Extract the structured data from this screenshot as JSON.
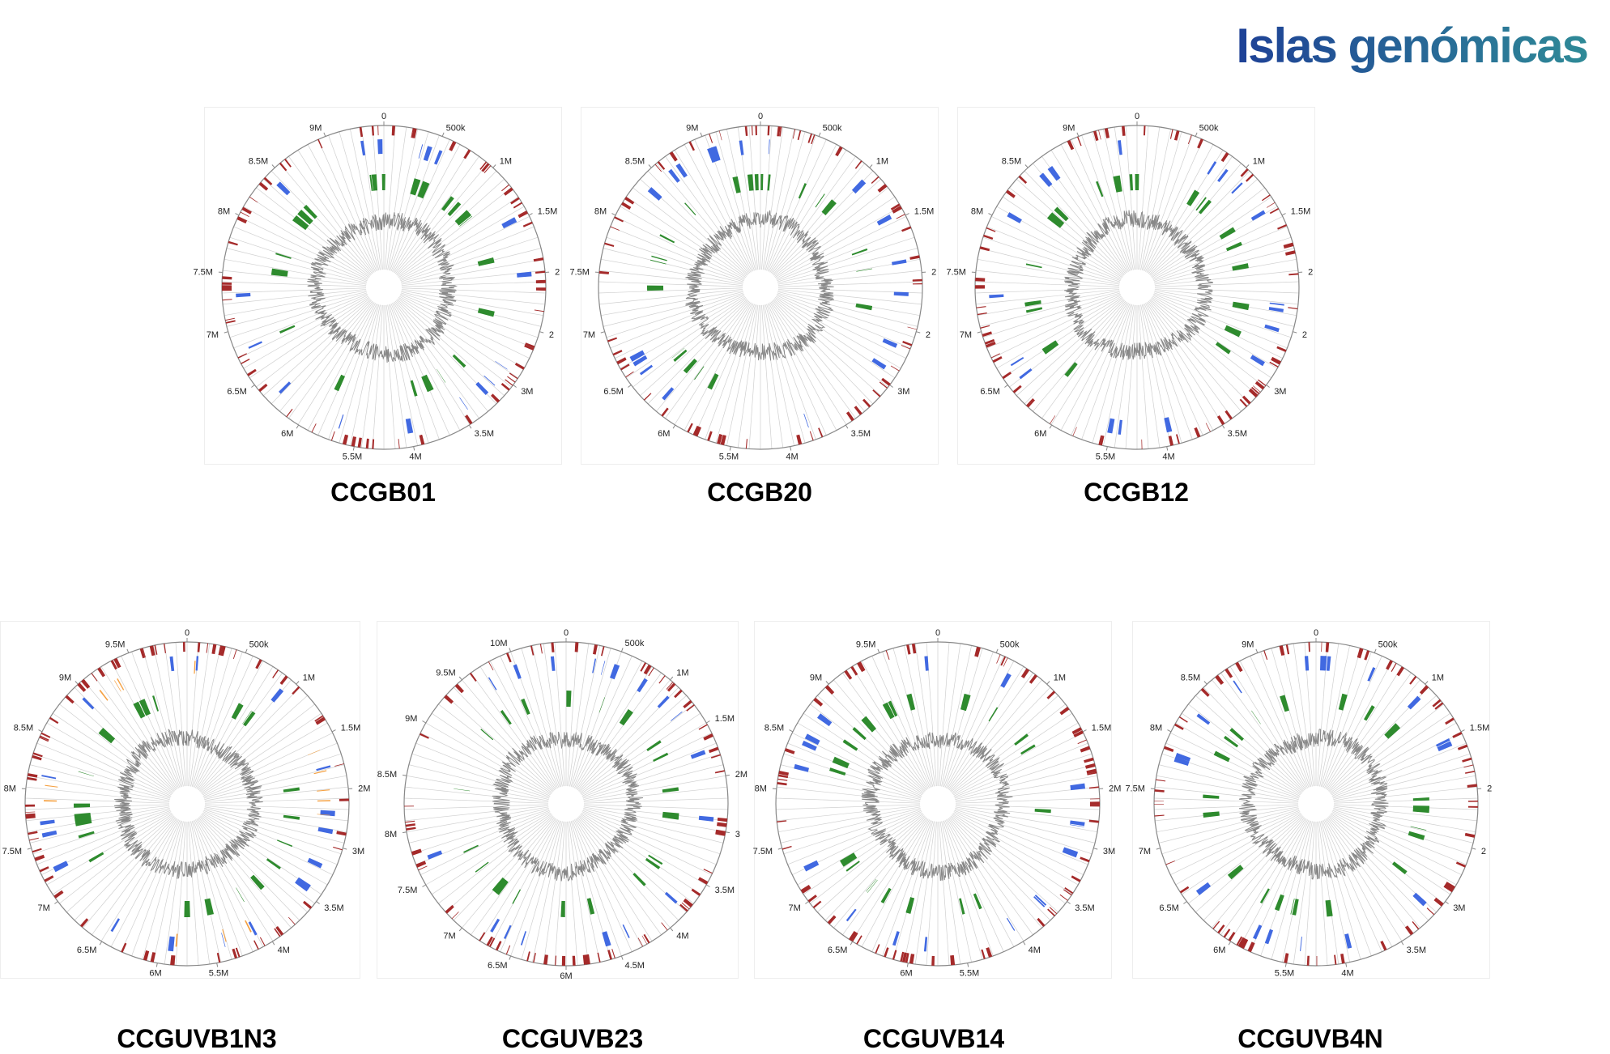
{
  "title": "Islas genómicas",
  "colors": {
    "title_gradient": [
      "#1d3c96",
      "#2f8a97"
    ],
    "outer_track": "#a52a2a",
    "second_track": "#4169e1",
    "third_track": "#2e8b2e",
    "fourth_track": "#f5a142",
    "gc_line": "#888888",
    "axis": "#888888"
  },
  "plots": [
    {
      "id": "CCGB01",
      "label": "CCGB01",
      "ticks": [
        "0",
        "500k",
        "1M",
        "1.5M",
        "2",
        "2",
        "3M",
        "3.5M",
        "4M",
        "5.5M",
        "6M",
        "6.5M",
        "7M",
        "7.5M",
        "8M",
        "8.5M",
        "9M"
      ]
    },
    {
      "id": "CCGB20",
      "label": "CCGB20",
      "ticks": [
        "0",
        "500k",
        "1M",
        "1.5M",
        "2",
        "2",
        "3M",
        "3.5M",
        "4M",
        "5.5M",
        "6M",
        "6.5M",
        "7M",
        "7.5M",
        "8M",
        "8.5M",
        "9M"
      ]
    },
    {
      "id": "CCGB12",
      "label": "CCGB12",
      "ticks": [
        "0",
        "500k",
        "1M",
        "1.5M",
        "2",
        "2",
        "3M",
        "3.5M",
        "4M",
        "5.5M",
        "6M",
        "6.5M",
        "7M",
        "7.5M",
        "8M",
        "8.5M",
        "9M"
      ]
    },
    {
      "id": "CCGUVB1N3",
      "label": "CCGUVB1N3",
      "ticks": [
        "0",
        "500k",
        "1M",
        "1.5M",
        "2M",
        "3M",
        "3.5M",
        "4M",
        "5.5M",
        "6M",
        "6.5M",
        "7M",
        "7.5M",
        "8M",
        "8.5M",
        "9M",
        "9.5M"
      ]
    },
    {
      "id": "CCGUVB23",
      "label": "CCGUVB23",
      "ticks": [
        "0",
        "500k",
        "1M",
        "1.5M",
        "2M",
        "3",
        "3.5M",
        "4M",
        "4.5M",
        "6M",
        "6.5M",
        "7M",
        "7.5M",
        "8M",
        "8.5M",
        "9M",
        "9.5M",
        "10M"
      ]
    },
    {
      "id": "CCGUVB14",
      "label": "CCGUVB14",
      "ticks": [
        "0",
        "500k",
        "1M",
        "1.5M",
        "2M",
        "3M",
        "3.5M",
        "4M",
        "5.5M",
        "6M",
        "6.5M",
        "7M",
        "7.5M",
        "8M",
        "8.5M",
        "9M",
        "9.5M"
      ]
    },
    {
      "id": "CCGUVB4N",
      "label": "CCGUVB4N",
      "ticks": [
        "0",
        "500k",
        "1M",
        "1.5M",
        "2",
        "2",
        "3M",
        "3.5M",
        "4M",
        "5.5M",
        "6M",
        "6.5M",
        "7M",
        "7.5M",
        "8M",
        "8.5M",
        "9M"
      ]
    }
  ]
}
